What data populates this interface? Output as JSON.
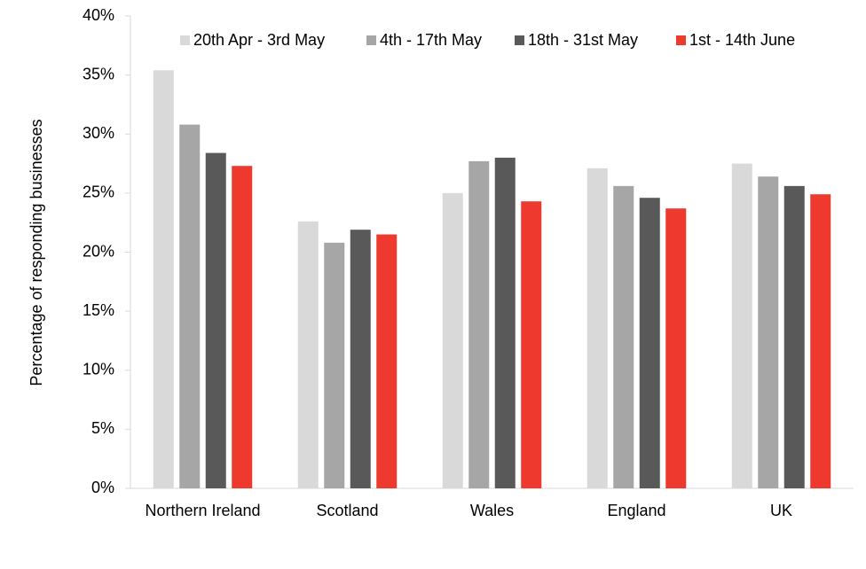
{
  "chart_data": {
    "type": "bar",
    "y_label": "Percentage of responding businesses",
    "categories": [
      "Northern Ireland",
      "Scotland",
      "Wales",
      "England",
      "UK"
    ],
    "series": [
      {
        "name": "20th Apr - 3rd May",
        "color": "#d9d9d9",
        "values": [
          35.4,
          22.6,
          25.0,
          27.1,
          27.5
        ]
      },
      {
        "name": "4th - 17th May",
        "color": "#a6a6a6",
        "values": [
          30.8,
          20.8,
          27.7,
          25.6,
          26.4
        ]
      },
      {
        "name": "18th - 31st May",
        "color": "#595959",
        "values": [
          28.4,
          21.9,
          28.0,
          24.6,
          25.6
        ]
      },
      {
        "name": "1st - 14th June",
        "color": "#ee3a2e",
        "values": [
          27.3,
          21.5,
          24.3,
          23.7,
          24.9
        ]
      }
    ],
    "ylim": [
      0,
      40
    ],
    "yticks": [
      {
        "value": 0,
        "label": "0%"
      },
      {
        "value": 5,
        "label": "5%"
      },
      {
        "value": 10,
        "label": "10%"
      },
      {
        "value": 15,
        "label": "15%"
      },
      {
        "value": 20,
        "label": "20%"
      },
      {
        "value": 25,
        "label": "25%"
      },
      {
        "value": 30,
        "label": "30%"
      },
      {
        "value": 35,
        "label": "35%"
      },
      {
        "value": 40,
        "label": "40%"
      }
    ],
    "grid": false,
    "legend": "top-right"
  }
}
